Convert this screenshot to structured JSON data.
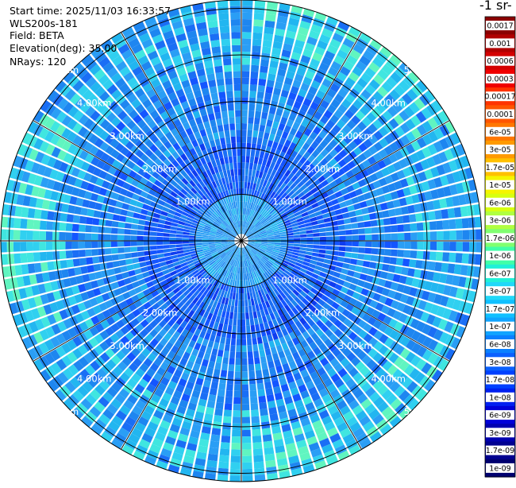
{
  "header": {
    "start_time": "Start time: 2025/11/03 16:33:57",
    "instrument": "WLS200s-181",
    "field": "Field: BETA",
    "elevation": "Elevation(deg): 35.00",
    "nrays": "NRays: 120"
  },
  "colorbar": {
    "title_fragment": "-1 sr-",
    "labels": [
      "0.0017",
      "0.001",
      "0.0006",
      "0.0003",
      "0.00017",
      "0.0001",
      "6e-05",
      "3e-05",
      "1.7e-05",
      "1e-05",
      "6e-06",
      "3e-06",
      "1.7e-06",
      "1e-06",
      "6e-07",
      "3e-07",
      "1.7e-07",
      "1e-07",
      "6e-08",
      "3e-08",
      "1.7e-08",
      "1e-08",
      "6e-09",
      "3e-09",
      "1.7e-09",
      "1e-09"
    ],
    "colors": [
      "#8b0000",
      "#b00000",
      "#d40000",
      "#f00000",
      "#ff3300",
      "#ff5500",
      "#ff7700",
      "#ff9a00",
      "#ffc000",
      "#f5f500",
      "#d8ff10",
      "#b0ff40",
      "#80ff70",
      "#40ffa8",
      "#20f0d8",
      "#20d8f8",
      "#10c0ff",
      "#10a4ff",
      "#0a80ff",
      "#0a60ff",
      "#0040ff",
      "#0020f0",
      "#0000d8",
      "#0000b0",
      "#000090",
      "#000070"
    ]
  },
  "chart_data": {
    "type": "polar-ppi",
    "field": "BETA",
    "elevation_deg": 35.0,
    "nrays": 120,
    "range_ring_labels": [
      "1.00km",
      "2.00km",
      "3.00km",
      "4.00km",
      "5.00km"
    ],
    "range_rings_km": [
      1,
      2,
      3,
      4,
      5
    ],
    "spoke_count": 12,
    "color_scale": "log"
  }
}
